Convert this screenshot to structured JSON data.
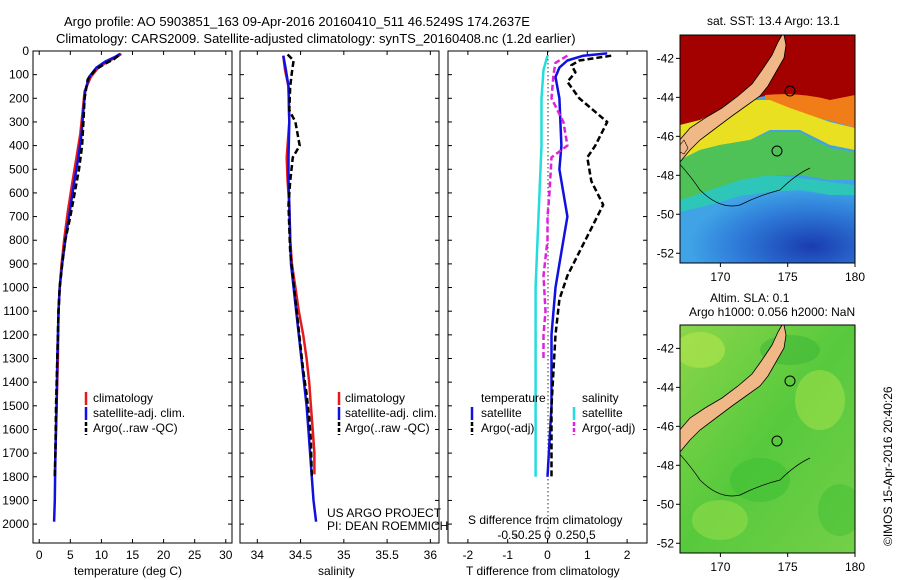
{
  "header": {
    "line1": "Argo profile: AO 5903851_163 09-Apr-2016 20160410_511 46.5249S 174.2637E",
    "line2": "Climatology: CARS2009. Satellite-adjusted climatology: synTS_20160408.nc (1.2d earlier)"
  },
  "colors": {
    "red": "#e41a1c",
    "blue": "#1010e0",
    "black": "#000000",
    "cyan": "#22dddd",
    "magenta": "#dd22dd"
  },
  "chart_data": [
    {
      "type": "line",
      "name": "temperature-profile",
      "xlabel": "temperature (deg C)",
      "ylabel": "depth",
      "xlim": [
        -1,
        31
      ],
      "ylim": [
        0,
        2080
      ],
      "xticks": [
        0,
        5,
        10,
        15,
        20,
        25,
        30
      ],
      "yticks": [
        0,
        100,
        200,
        300,
        400,
        500,
        600,
        700,
        800,
        900,
        1000,
        1100,
        1200,
        1300,
        1400,
        1500,
        1600,
        1700,
        1800,
        1900,
        2000
      ],
      "legend": [
        "climatology",
        "satellite-adj. clim.",
        "Argo(..raw -QC)"
      ],
      "series": [
        {
          "name": "climatology",
          "color": "red",
          "dash": false,
          "points": [
            [
              13.2,
              12
            ],
            [
              12.5,
              25
            ],
            [
              11.0,
              45
            ],
            [
              9.5,
              70
            ],
            [
              8.3,
              110
            ],
            [
              7.3,
              170
            ],
            [
              7.0,
              250
            ],
            [
              6.6,
              350
            ],
            [
              6.0,
              450
            ],
            [
              5.3,
              560
            ],
            [
              4.6,
              680
            ],
            [
              4.0,
              800
            ],
            [
              3.6,
              900
            ],
            [
              3.3,
              1000
            ],
            [
              3.1,
              1100
            ],
            [
              3.0,
              1300
            ],
            [
              2.8,
              1500
            ],
            [
              2.6,
              1700
            ],
            [
              2.5,
              1800
            ]
          ]
        },
        {
          "name": "satellite-adj. clim.",
          "color": "blue",
          "dash": false,
          "points": [
            [
              13.0,
              12
            ],
            [
              12.2,
              25
            ],
            [
              10.6,
              45
            ],
            [
              9.2,
              70
            ],
            [
              8.0,
              110
            ],
            [
              7.4,
              170
            ],
            [
              7.1,
              250
            ],
            [
              6.8,
              350
            ],
            [
              6.3,
              450
            ],
            [
              5.6,
              560
            ],
            [
              4.9,
              680
            ],
            [
              4.2,
              800
            ],
            [
              3.7,
              900
            ],
            [
              3.3,
              1000
            ],
            [
              3.1,
              1100
            ],
            [
              2.9,
              1300
            ],
            [
              2.8,
              1500
            ],
            [
              2.6,
              1700
            ],
            [
              2.5,
              1900
            ],
            [
              2.4,
              1990
            ]
          ]
        },
        {
          "name": "Argo(..raw -QC)",
          "color": "black",
          "dash": true,
          "points": [
            [
              12.7,
              20
            ],
            [
              12.0,
              35
            ],
            [
              10.5,
              55
            ],
            [
              9.0,
              80
            ],
            [
              7.8,
              120
            ],
            [
              7.3,
              200
            ],
            [
              7.1,
              300
            ],
            [
              6.9,
              400
            ],
            [
              6.4,
              500
            ],
            [
              5.7,
              600
            ],
            [
              5.0,
              700
            ],
            [
              4.2,
              800
            ],
            [
              3.7,
              900
            ],
            [
              3.3,
              1000
            ],
            [
              3.1,
              1100
            ],
            [
              2.9,
              1300
            ],
            [
              2.7,
              1500
            ],
            [
              2.6,
              1700
            ],
            [
              2.5,
              1800
            ]
          ]
        }
      ]
    },
    {
      "type": "line",
      "name": "salinity-profile",
      "xlabel": "salinity",
      "xlim": [
        33.8,
        36.1
      ],
      "ylim": [
        0,
        2080
      ],
      "xticks": [
        34,
        34.5,
        35,
        35.5,
        36
      ],
      "legend": [
        "climatology",
        "satellite-adj. clim.",
        "Argo(..raw -QC)"
      ],
      "series": [
        {
          "name": "climatology",
          "color": "red",
          "dash": false,
          "points": [
            [
              34.3,
              20
            ],
            [
              34.32,
              80
            ],
            [
              34.36,
              150
            ],
            [
              34.37,
              300
            ],
            [
              34.34,
              450
            ],
            [
              34.35,
              550
            ],
            [
              34.37,
              650
            ],
            [
              34.38,
              800
            ],
            [
              34.4,
              900
            ],
            [
              34.44,
              1000
            ],
            [
              34.48,
              1100
            ],
            [
              34.53,
              1200
            ],
            [
              34.57,
              1300
            ],
            [
              34.6,
              1400
            ],
            [
              34.62,
              1500
            ],
            [
              34.64,
              1600
            ],
            [
              34.66,
              1700
            ],
            [
              34.66,
              1790
            ]
          ]
        },
        {
          "name": "satellite-adj. clim.",
          "color": "blue",
          "dash": false,
          "points": [
            [
              34.3,
              20
            ],
            [
              34.33,
              80
            ],
            [
              34.36,
              150
            ],
            [
              34.37,
              300
            ],
            [
              34.36,
              450
            ],
            [
              34.36,
              550
            ],
            [
              34.37,
              650
            ],
            [
              34.38,
              800
            ],
            [
              34.39,
              900
            ],
            [
              34.42,
              1000
            ],
            [
              34.45,
              1100
            ],
            [
              34.48,
              1200
            ],
            [
              34.51,
              1300
            ],
            [
              34.54,
              1400
            ],
            [
              34.57,
              1500
            ],
            [
              34.59,
              1600
            ],
            [
              34.61,
              1700
            ],
            [
              34.63,
              1800
            ],
            [
              34.65,
              1900
            ],
            [
              34.68,
              1990
            ]
          ]
        },
        {
          "name": "Argo(..raw -QC)",
          "color": "black",
          "dash": true,
          "points": [
            [
              34.35,
              15
            ],
            [
              34.42,
              40
            ],
            [
              34.4,
              90
            ],
            [
              34.38,
              150
            ],
            [
              34.37,
              250
            ],
            [
              34.44,
              300
            ],
            [
              34.49,
              400
            ],
            [
              34.41,
              450
            ],
            [
              34.38,
              550
            ],
            [
              34.36,
              650
            ],
            [
              34.37,
              750
            ],
            [
              34.38,
              850
            ],
            [
              34.41,
              950
            ],
            [
              34.44,
              1050
            ],
            [
              34.47,
              1150
            ],
            [
              34.5,
              1250
            ],
            [
              34.53,
              1350
            ],
            [
              34.57,
              1450
            ],
            [
              34.6,
              1550
            ],
            [
              34.62,
              1650
            ],
            [
              34.63,
              1800
            ]
          ]
        }
      ]
    },
    {
      "type": "line",
      "name": "difference-profile",
      "xlabel_top": "S difference from climatology",
      "xlabel": "T difference from climatology",
      "xlim": [
        -2.5,
        2.5
      ],
      "ylim": [
        0,
        2080
      ],
      "xticks": [
        -2,
        -1,
        0,
        1,
        2
      ],
      "s_ticks": [
        {
          "label": "-0.5",
          "t": -1
        },
        {
          "label": "-0.25",
          "t": -0.5
        },
        {
          "label": "0",
          "t": 0
        },
        {
          "label": "0.25",
          "t": 0.5
        },
        {
          "label": "0.5",
          "t": 1
        }
      ],
      "legend_titles": [
        "temperature",
        "salinity"
      ],
      "legend_temperature": [
        "satellite",
        "Argo(-adj)"
      ],
      "legend_salinity": [
        "satellite",
        "Argo(-adj)"
      ],
      "series": [
        {
          "name": "T satellite",
          "color": "blue",
          "dash": false,
          "points": [
            [
              1.5,
              10
            ],
            [
              0.9,
              20
            ],
            [
              0.5,
              40
            ],
            [
              0.3,
              70
            ],
            [
              0.2,
              110
            ],
            [
              0.3,
              200
            ],
            [
              0.35,
              400
            ],
            [
              0.3,
              500
            ],
            [
              0.4,
              600
            ],
            [
              0.5,
              700
            ],
            [
              0.4,
              800
            ],
            [
              0.3,
              900
            ],
            [
              0.2,
              1000
            ],
            [
              0.1,
              1200
            ],
            [
              0.1,
              1500
            ],
            [
              0.0,
              1800
            ]
          ]
        },
        {
          "name": "T Argo(-adj)",
          "color": "black",
          "dash": true,
          "points": [
            [
              1.6,
              20
            ],
            [
              0.8,
              40
            ],
            [
              0.6,
              60
            ],
            [
              0.7,
              90
            ],
            [
              0.5,
              130
            ],
            [
              0.8,
              200
            ],
            [
              1.5,
              300
            ],
            [
              1.2,
              400
            ],
            [
              1.0,
              450
            ],
            [
              1.1,
              550
            ],
            [
              1.4,
              650
            ],
            [
              1.1,
              750
            ],
            [
              0.8,
              850
            ],
            [
              0.5,
              950
            ],
            [
              0.3,
              1050
            ],
            [
              0.2,
              1200
            ],
            [
              0.1,
              1500
            ],
            [
              0.1,
              1800
            ]
          ]
        },
        {
          "name": "S satellite",
          "color": "cyan",
          "dash": false,
          "points": [
            [
              0.0,
              20
            ],
            [
              -0.1,
              80
            ],
            [
              -0.15,
              200
            ],
            [
              -0.15,
              400
            ],
            [
              -0.2,
              600
            ],
            [
              -0.25,
              800
            ],
            [
              -0.3,
              1000
            ],
            [
              -0.3,
              1200
            ],
            [
              -0.3,
              1500
            ],
            [
              -0.3,
              1800
            ]
          ]
        },
        {
          "name": "S Argo(-adj)",
          "color": "magenta",
          "dash": true,
          "points": [
            [
              0.5,
              20
            ],
            [
              0.2,
              50
            ],
            [
              0.15,
              100
            ],
            [
              0.1,
              200
            ],
            [
              0.4,
              300
            ],
            [
              0.5,
              400
            ],
            [
              0.1,
              450
            ],
            [
              0.05,
              600
            ],
            [
              0.0,
              700
            ],
            [
              0.0,
              800
            ],
            [
              -0.1,
              950
            ],
            [
              -0.05,
              1100
            ],
            [
              -0.1,
              1200
            ],
            [
              -0.1,
              1300
            ]
          ]
        }
      ]
    },
    {
      "type": "heatmap",
      "name": "sst-map",
      "title": "sat. SST: 13.4 Argo: 13.1",
      "xlim": [
        167,
        180
      ],
      "ylim": [
        -52.5,
        -40.8
      ],
      "xticks": [
        170,
        175,
        180
      ],
      "yticks": [
        -42,
        -44,
        -46,
        -48,
        -50,
        -52
      ],
      "argo_position": [
        174.26,
        -46.52
      ],
      "circle_marker": [
        175.0,
        -43.5
      ]
    },
    {
      "type": "heatmap",
      "name": "sla-map",
      "title1": "Altim. SLA: 0.1",
      "title2": "Argo h1000: 0.056 h2000: NaN",
      "xlim": [
        167,
        180
      ],
      "ylim": [
        -52.5,
        -40.8
      ],
      "xticks": [
        170,
        175,
        180
      ],
      "yticks": [
        -42,
        -44,
        -46,
        -48,
        -50,
        -52
      ],
      "argo_position": [
        174.26,
        -46.52
      ],
      "circle_marker": [
        175.0,
        -43.5
      ]
    }
  ],
  "annotations": {
    "project1": "US ARGO PROJECT",
    "project2": "PI: DEAN ROEMMICH",
    "credit": "©IMOS 15-Apr-2016 20:40:26"
  }
}
